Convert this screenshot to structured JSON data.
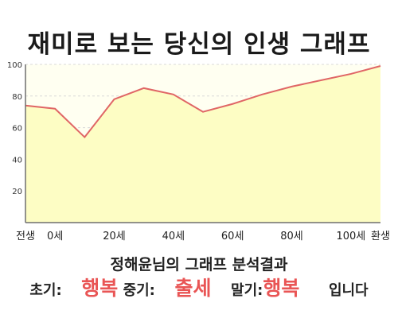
{
  "title": "재미로 보는 당신의 인생 그래프",
  "chart_data": {
    "type": "area",
    "x": [
      -10,
      0,
      10,
      20,
      30,
      40,
      50,
      60,
      70,
      80,
      90,
      100,
      110
    ],
    "values": [
      74,
      72,
      54,
      78,
      85,
      81,
      70,
      75,
      81,
      86,
      90,
      94,
      99
    ],
    "x_ticks": [
      -10,
      0,
      20,
      40,
      60,
      80,
      100,
      110
    ],
    "x_tick_labels": [
      "전생",
      "0세",
      "20세",
      "40세",
      "60세",
      "80세",
      "100세",
      "환생"
    ],
    "y_ticks": [
      20,
      40,
      60,
      80,
      100
    ],
    "y_tick_labels": [
      "20",
      "40",
      "60",
      "80",
      "100"
    ],
    "xlim": [
      -10,
      110
    ],
    "ylim": [
      0,
      100
    ],
    "grid": "horizontal dashed",
    "colors": {
      "line": "#e06666",
      "fill": "#fdfdc4",
      "plot_bg": "#fffff1",
      "axis": "#6e6e6e",
      "grid": "#d8d8d8"
    }
  },
  "summary": {
    "title": "정해윤님의 그래프 분석결과",
    "early_label": "초기:",
    "early_value": "행복",
    "mid_label": "중기:",
    "mid_value": "출세",
    "late_label": "말기:",
    "late_value": "행복",
    "suffix": "입니다"
  }
}
